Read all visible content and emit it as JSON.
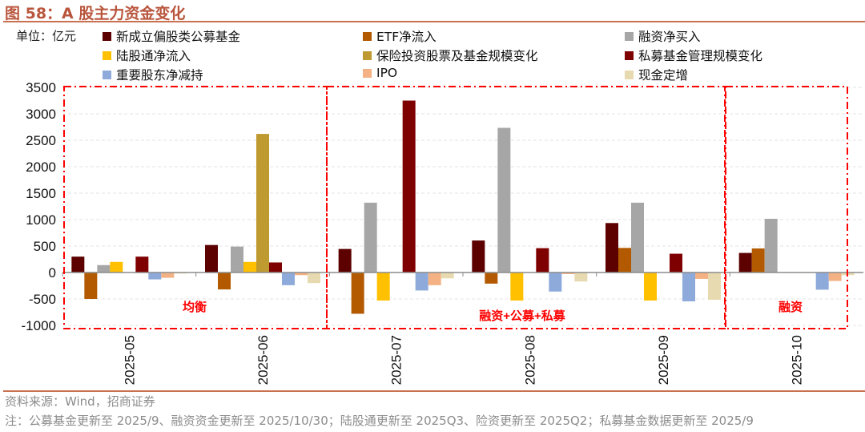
{
  "title": "图 58：A 股主力资金变化",
  "unit_label": "单位：亿元",
  "source": "资料来源：Wind，招商证券",
  "note": "注：公募基金更新至 2025/9、融资资金更新至 2025/10/30；陆股通更新至 2025Q3、险资更新至 2025Q2；私募基金数据更新至 2025/9",
  "chart_data": {
    "type": "bar",
    "title": "A 股主力资金变化",
    "ylabel": "亿元",
    "ylim": [
      -1000,
      3500
    ],
    "yticks": [
      3500,
      3000,
      2500,
      2000,
      1500,
      1000,
      500,
      0,
      -500,
      -1000
    ],
    "grid": true,
    "legend_placement": "top",
    "categories": [
      "2025-05",
      "2025-06",
      "2025-07",
      "2025-08",
      "2025-09",
      "2025-10"
    ],
    "series": [
      {
        "name": "新成立偏股类公募基金",
        "color": "#5c0000",
        "values": [
          300,
          520,
          445,
          605,
          935,
          370
        ]
      },
      {
        "name": "ETF净流入",
        "color": "#b35a00",
        "values": [
          -500,
          -320,
          -780,
          -210,
          465,
          455
        ]
      },
      {
        "name": "融资净买入",
        "color": "#a6a6a6",
        "values": [
          140,
          490,
          1320,
          2735,
          1320,
          1015
        ]
      },
      {
        "name": "陆股通净流入",
        "color": "#ffc000",
        "values": [
          200,
          200,
          -530,
          -530,
          -530,
          null
        ]
      },
      {
        "name": "保险投资股票及基金规模变化",
        "color": "#bf9a30",
        "values": [
          0,
          2620,
          0,
          0,
          0,
          null
        ]
      },
      {
        "name": "私募基金管理规模变化",
        "color": "#7f0000",
        "values": [
          300,
          190,
          3250,
          460,
          355,
          null
        ]
      },
      {
        "name": "重要股东净减持",
        "color": "#8eaadb",
        "values": [
          -130,
          -240,
          -340,
          -360,
          -545,
          -325
        ]
      },
      {
        "name": "IPO",
        "color": "#f4b183",
        "values": [
          -100,
          -50,
          -240,
          -30,
          -120,
          -160
        ]
      },
      {
        "name": "现金定增",
        "color": "#e8dab0",
        "values": [
          -20,
          -200,
          -110,
          -170,
          -515,
          -50
        ]
      }
    ],
    "annotations": [
      {
        "text": "均衡",
        "categories": [
          "2025-05",
          "2025-06"
        ]
      },
      {
        "text": "融资+公募+私募",
        "categories": [
          "2025-07",
          "2025-08",
          "2025-09"
        ]
      },
      {
        "text": "融资",
        "categories": [
          "2025-10"
        ]
      }
    ]
  }
}
